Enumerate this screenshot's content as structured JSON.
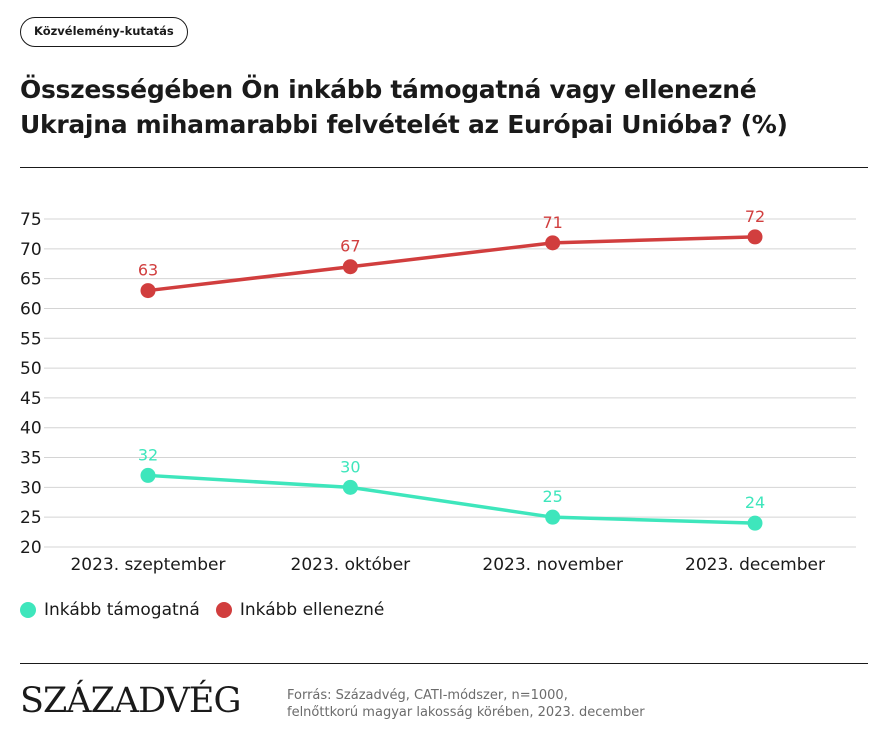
{
  "tag": "Közvélemény-kutatás",
  "title": "Összességében Ön inkább támogatná vagy ellenezné Ukrajna mihamarabbi felvételét az Európai Unióba? (%)",
  "logo": "SZÁZADVÉG",
  "source": {
    "line1": "Forrás: Századvég, CATI-módszer, n=1000,",
    "line2": "felnőttkorú magyar lakosság körében, 2023. december"
  },
  "colors": {
    "support": "#3ee6bc",
    "oppose": "#d13e3e"
  },
  "chart_data": {
    "type": "line",
    "title": "Összességében Ön inkább támogatná vagy ellenezné Ukrajna mihamarabbi felvételét az Európai Unióba? (%)",
    "categories": [
      "2023. szeptember",
      "2023. október",
      "2023. november",
      "2023. december"
    ],
    "series": [
      {
        "name": "Inkább támogatná",
        "color": "#3ee6bc",
        "values": [
          32,
          30,
          25,
          24
        ]
      },
      {
        "name": "Inkább ellenezné",
        "color": "#d13e3e",
        "values": [
          63,
          67,
          71,
          72
        ]
      }
    ],
    "ylim": [
      20,
      75
    ],
    "yticks": [
      20,
      25,
      30,
      35,
      40,
      45,
      50,
      55,
      60,
      65,
      70,
      75
    ],
    "grid": true,
    "legend": "bottom-left"
  }
}
